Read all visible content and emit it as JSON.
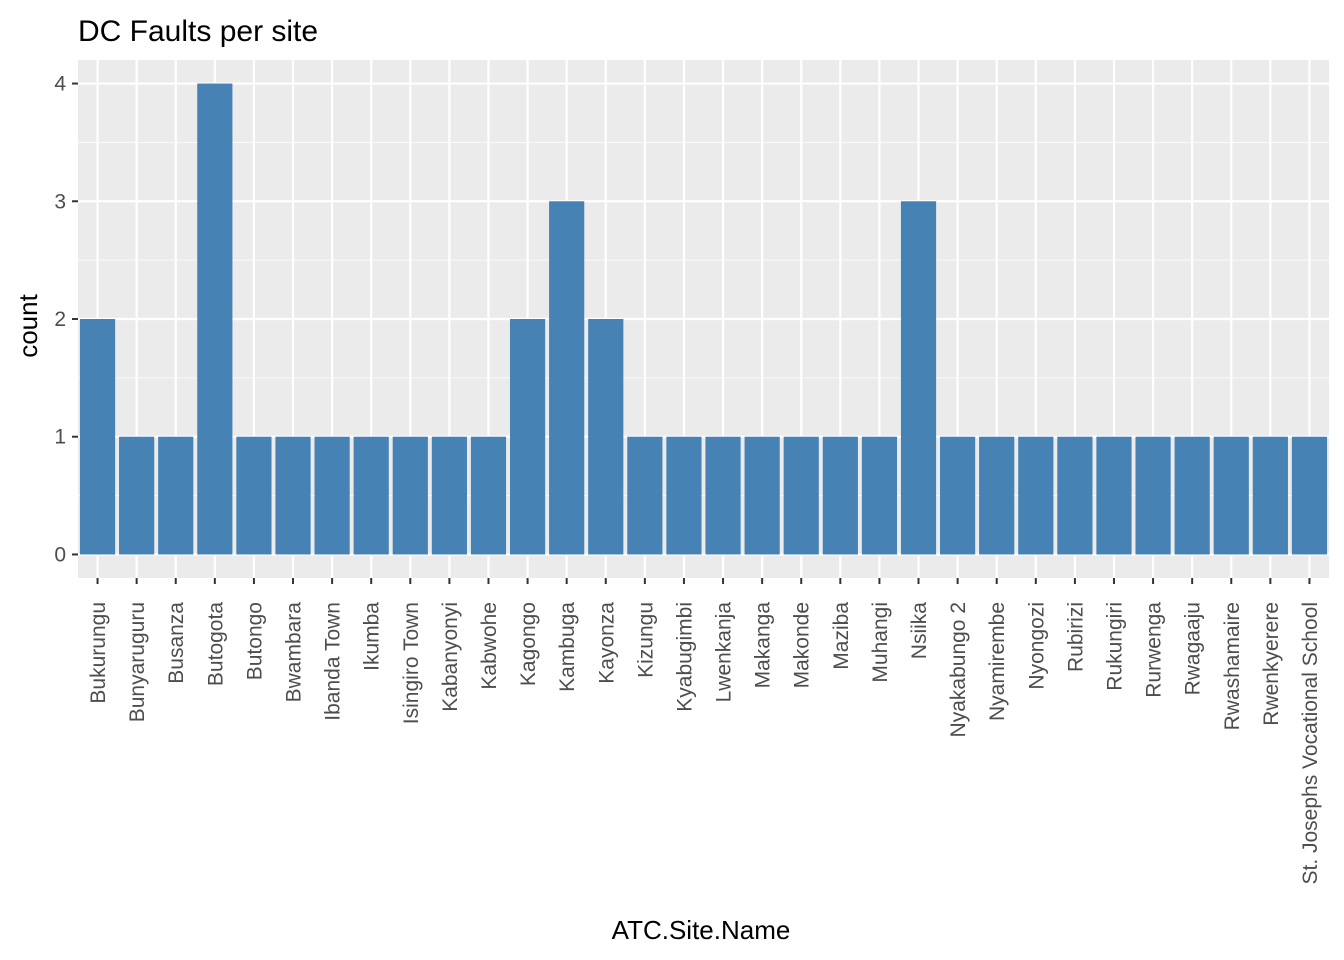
{
  "chart_data": {
    "type": "bar",
    "title": "DC Faults per site",
    "xlabel": "ATC.Site.Name",
    "ylabel": "count",
    "ylim": [
      -0.2,
      4.2
    ],
    "yticks": [
      0,
      1,
      2,
      3,
      4
    ],
    "grid": true,
    "legend": "none",
    "categories": [
      "Bukurungu",
      "Bunyaruguru",
      "Busanza",
      "Butogota",
      "Butongo",
      "Bwambara",
      "Ibanda Town",
      "Ikumba",
      "Isingiro Town",
      "Kabanyonyi",
      "Kabwohe",
      "Kagongo",
      "Kambuga",
      "Kayonza",
      "Kizungu",
      "Kyabugimbi",
      "Lwenkanja",
      "Makanga",
      "Makonde",
      "Maziba",
      "Muhangi",
      "Nsiika",
      "Nyakabungo 2",
      "Nyamirembe",
      "Nyongozi",
      "Rubirizi",
      "Rukungiri",
      "Rurwenga",
      "Rwagaaju",
      "Rwashamaire",
      "Rwenkyerere",
      "St. Josephs Vocational School"
    ],
    "values": [
      2,
      1,
      1,
      4,
      1,
      1,
      1,
      1,
      1,
      1,
      1,
      2,
      3,
      2,
      1,
      1,
      1,
      1,
      1,
      1,
      1,
      3,
      1,
      1,
      1,
      1,
      1,
      1,
      1,
      1,
      1,
      1
    ],
    "colors": {
      "bar": "#4682B4",
      "panel": "#EBEBEB",
      "grid_major": "#FFFFFF",
      "tick_text": "#4D4D4D",
      "tick_mark": "#333333"
    }
  }
}
